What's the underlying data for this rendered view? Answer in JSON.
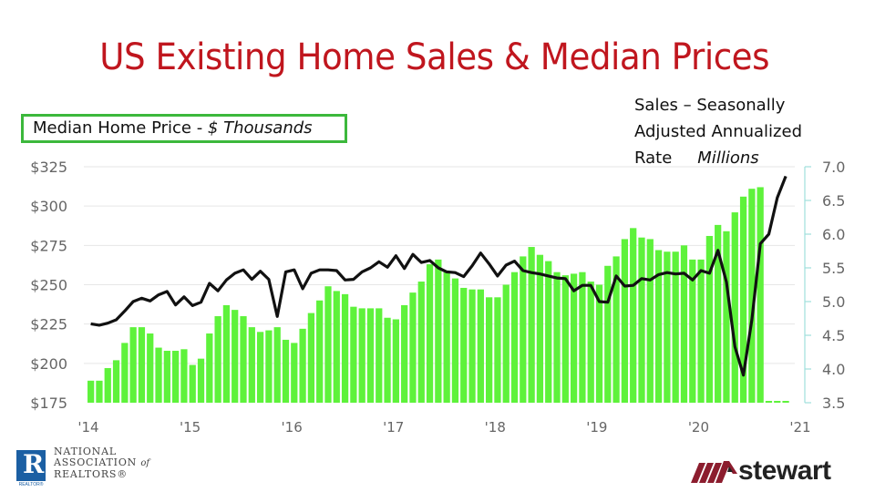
{
  "title": "US Existing Home Sales & Median Prices",
  "left_legend": {
    "label": "Median Home Price - ",
    "unit": "$ Thousands"
  },
  "right_legend": {
    "line1": "Sales – Seasonally",
    "line2": "Adjusted Annualized",
    "line3": "Rate",
    "unit": "Millions"
  },
  "colors": {
    "title": "#c0161e",
    "bars": "#5ef23b",
    "line": "#111111",
    "legend_border": "#3cb83c",
    "right_axis": "#9fe0dc",
    "grid": "#e6e6e6"
  },
  "logos": {
    "nar": {
      "mark": "R",
      "mark_caption": "REALTOR®",
      "line1": "NATIONAL",
      "line2": "ASSOCIATION",
      "line2_suffix": "of",
      "line3": "REALTORS®"
    },
    "stewart": {
      "word": "stewart"
    }
  },
  "chart_data": {
    "type": "bar+line",
    "title": "US Existing Home Sales & Median Prices",
    "xlabel": "",
    "x_ticks": [
      "'14",
      "'15",
      "'16",
      "'17",
      "'18",
      "'19",
      "'20",
      "'21"
    ],
    "y_left": {
      "label": "Median Home Price - $ Thousands",
      "ticks": [
        "$175",
        "$200",
        "$225",
        "$250",
        "$275",
        "$300",
        "$325"
      ],
      "range": [
        175,
        325
      ]
    },
    "y_right": {
      "label": "Sales – Seasonally Adjusted Annualized Rate Millions",
      "ticks": [
        "3.5",
        "4.0",
        "4.5",
        "5.0",
        "5.5",
        "6.0",
        "6.5",
        "7.0"
      ],
      "range": [
        3.5,
        7.0
      ]
    },
    "grid": true,
    "legend_position": "top",
    "start": "2014-01",
    "series": [
      {
        "name": "Median Home Price ($ Thousands)",
        "type": "bar",
        "axis": "left",
        "values": [
          189,
          189,
          197,
          202,
          213,
          223,
          223,
          219,
          210,
          208,
          208,
          209,
          199,
          203,
          219,
          230,
          237,
          234,
          230,
          223,
          220,
          221,
          223,
          215,
          213,
          222,
          232,
          240,
          249,
          246,
          244,
          236,
          235,
          235,
          235,
          229,
          228,
          237,
          245,
          252,
          263,
          266,
          258,
          254,
          248,
          247,
          247,
          242,
          242,
          250,
          258,
          268,
          274,
          269,
          265,
          258,
          256,
          257,
          258,
          252,
          250,
          262,
          268,
          279,
          286,
          280,
          279,
          272,
          271,
          271,
          275,
          266,
          266,
          281,
          288,
          284,
          296,
          306,
          311,
          312
        ]
      },
      {
        "name": "Existing Home Sales SAAR (Millions)",
        "type": "line",
        "axis": "right",
        "values": [
          4.67,
          4.65,
          4.68,
          4.73,
          4.86,
          5.0,
          5.05,
          5.01,
          5.1,
          5.15,
          4.95,
          5.07,
          4.94,
          4.99,
          5.27,
          5.16,
          5.32,
          5.42,
          5.47,
          5.33,
          5.45,
          5.33,
          4.78,
          5.44,
          5.47,
          5.19,
          5.42,
          5.47,
          5.47,
          5.46,
          5.32,
          5.33,
          5.44,
          5.5,
          5.59,
          5.51,
          5.68,
          5.49,
          5.7,
          5.58,
          5.61,
          5.5,
          5.44,
          5.43,
          5.37,
          5.53,
          5.72,
          5.56,
          5.38,
          5.54,
          5.6,
          5.46,
          5.43,
          5.41,
          5.38,
          5.35,
          5.34,
          5.16,
          5.24,
          5.24,
          5.0,
          4.99,
          5.38,
          5.23,
          5.24,
          5.34,
          5.32,
          5.4,
          5.43,
          5.41,
          5.42,
          5.32,
          5.46,
          5.42,
          5.76,
          5.29,
          4.33,
          3.91,
          4.73,
          5.86,
          6.0,
          6.54,
          6.86
        ]
      }
    ],
    "trailing_empty_months": 3
  }
}
